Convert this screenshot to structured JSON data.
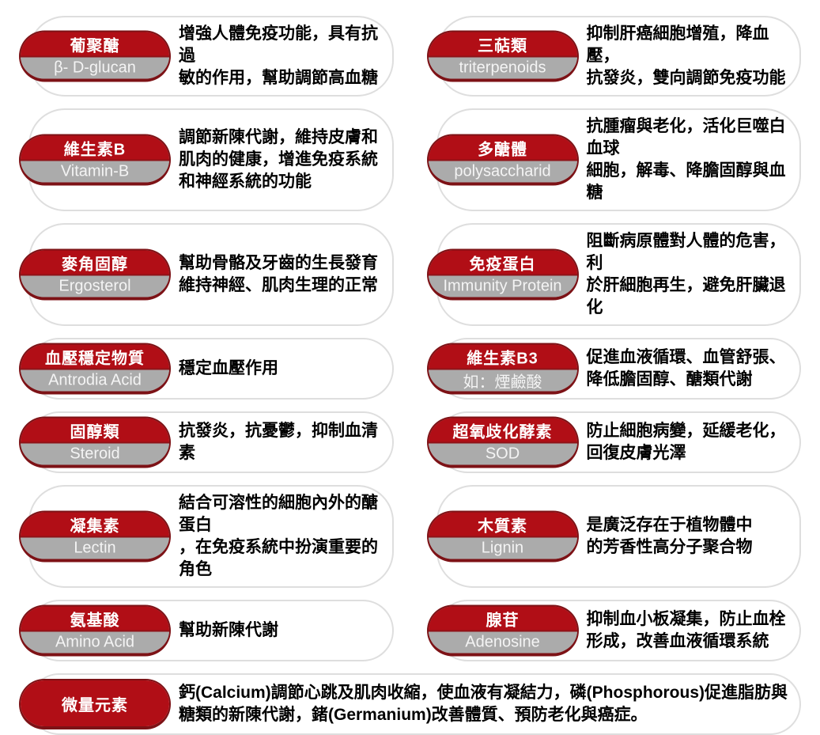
{
  "colors": {
    "badge_red": "#b10e16",
    "badge_red_border": "#7d1216",
    "badge_gray": "#ababab",
    "card_border": "#dedede",
    "badge_text": "#ffffff",
    "description_text": "#000000"
  },
  "cards": [
    {
      "zh": "葡聚醣",
      "en": "β- D-glucan",
      "desc": "增強人體免疫功能，具有抗過\n敏的作用，幫助調節高血糖"
    },
    {
      "zh": "三萜類",
      "en": "triterpenoids",
      "desc": "抑制肝癌細胞增殖，降血壓，\n抗發炎，雙向調節免疫功能"
    },
    {
      "zh": "維生素B",
      "en": "Vitamin-B",
      "desc": "調節新陳代謝，維持皮膚和\n肌肉的健康，增進免疫系統\n和神經系統的功能"
    },
    {
      "zh": "多醣體",
      "en": "polysaccharid",
      "desc": "抗腫瘤與老化，活化巨噬白血球\n細胞，解毒、降膽固醇與血糖"
    },
    {
      "zh": "麥角固醇",
      "en": "Ergosterol",
      "desc": "幫助骨骼及牙齒的生長發育\n維持神經、肌肉生理的正常"
    },
    {
      "zh": "免疫蛋白",
      "en": "Immunity Protein",
      "desc": "阻斷病原體對人體的危害，利\n於肝細胞再生，避免肝臟退化"
    },
    {
      "zh": "血壓穩定物質",
      "en": "Antrodia Acid",
      "desc": "穩定血壓作用"
    },
    {
      "zh": "維生素B3",
      "en": "如：煙鹼酸",
      "desc": "促進血液循環、血管舒張、\n降低膽固醇、醣類代謝"
    },
    {
      "zh": "固醇類",
      "en": "Steroid",
      "desc": "抗發炎，抗憂鬱，抑制血清素"
    },
    {
      "zh": "超氧歧化酵素",
      "en": "SOD",
      "desc": "防止細胞病變，延緩老化，\n回復皮膚光澤"
    },
    {
      "zh": "凝集素",
      "en": "Lectin",
      "desc": "結合可溶性的細胞內外的醣蛋白\n，在免疫系統中扮演重要的角色"
    },
    {
      "zh": "木質素",
      "en": "Lignin",
      "desc": "是廣泛存在于植物體中\n的芳香性高分子聚合物"
    },
    {
      "zh": "氨基酸",
      "en": "Amino Acid",
      "desc": "幫助新陳代謝"
    },
    {
      "zh": "腺苷",
      "en": "Adenosine",
      "desc": "抑制血小板凝集，防止血栓\n形成，改善血液循環系統"
    },
    {
      "zh": "微量元素",
      "en": "",
      "desc": "鈣(Calcium)調節心跳及肌肉收縮，使血液有凝結力，磷(Phosphorous)促進脂肪與\n糖類的新陳代謝，鍺(Germanium)改善體質、預防老化與癌症。"
    }
  ]
}
